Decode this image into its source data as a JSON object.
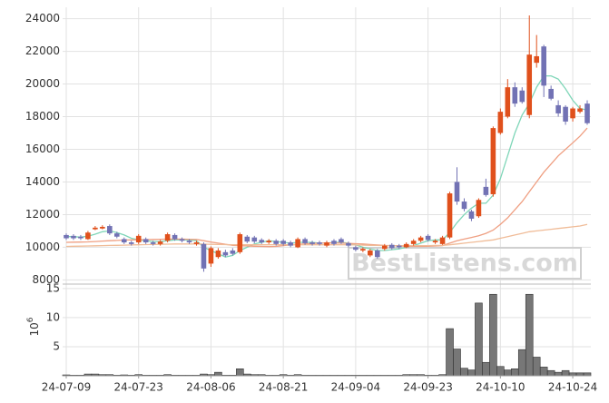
{
  "chart_data": [
    {
      "type": "candlestick",
      "up_color": "#e0501c",
      "down_color": "#7272b4",
      "ylim": [
        7800,
        24700
      ],
      "yticks": [
        8000,
        10000,
        12000,
        14000,
        16000,
        18000,
        20000,
        22000,
        24000
      ],
      "grid": true,
      "watermark": "BestListens.com",
      "open": [
        10750,
        10700,
        10650,
        10500,
        11100,
        11150,
        11300,
        10850,
        10500,
        10300,
        10300,
        10500,
        10300,
        10200,
        10400,
        10750,
        10500,
        10400,
        10200,
        10200,
        9000,
        9400,
        9700,
        9800,
        9700,
        10650,
        10600,
        10450,
        10300,
        10400,
        10400,
        10300,
        10000,
        10500,
        10300,
        10300,
        10100,
        10400,
        10500,
        10250,
        10000,
        9800,
        9500,
        9800,
        9900,
        10150,
        10100,
        10000,
        10200,
        10400,
        10700,
        10300,
        10200,
        10600,
        14000,
        12800,
        12200,
        11900,
        13700,
        13250,
        17000,
        18000,
        19800,
        19600,
        18100,
        21300,
        22300,
        19700,
        18700,
        18600,
        17900,
        18300,
        18800
      ],
      "high": [
        10850,
        10800,
        10750,
        11000,
        11300,
        11350,
        11400,
        10950,
        10600,
        10400,
        10800,
        10600,
        10400,
        10450,
        10900,
        10850,
        10600,
        10500,
        10400,
        10300,
        10050,
        9950,
        9850,
        9950,
        10900,
        10750,
        10700,
        10550,
        10500,
        10500,
        10500,
        10400,
        10600,
        10600,
        10400,
        10400,
        10400,
        10500,
        10600,
        10350,
        10100,
        10000,
        9900,
        9900,
        10200,
        10250,
        10200,
        10300,
        10500,
        10700,
        10800,
        10500,
        10700,
        13400,
        14900,
        13000,
        12300,
        13000,
        14200,
        17400,
        18500,
        20300,
        20100,
        19800,
        24200,
        23000,
        22400,
        19900,
        19000,
        18700,
        18600,
        18700,
        19000
      ],
      "low": [
        10450,
        10450,
        10450,
        10450,
        11050,
        11100,
        10750,
        10550,
        10200,
        10100,
        10200,
        10200,
        10100,
        10100,
        10300,
        10400,
        10300,
        10200,
        10100,
        8500,
        8800,
        9300,
        9400,
        9500,
        9600,
        10250,
        10250,
        10200,
        10200,
        10100,
        10100,
        10000,
        9950,
        10150,
        10100,
        10100,
        10000,
        10100,
        10200,
        10000,
        9750,
        9700,
        9400,
        9300,
        9800,
        9850,
        9900,
        9950,
        10100,
        10300,
        10350,
        10200,
        10150,
        10500,
        12600,
        12200,
        11600,
        11800,
        13100,
        13100,
        16900,
        17900,
        18600,
        18800,
        17900,
        21000,
        19200,
        19000,
        18000,
        17500,
        17700,
        18200,
        17500
      ],
      "close": [
        10550,
        10550,
        10550,
        10900,
        11200,
        11250,
        10850,
        10650,
        10300,
        10200,
        10700,
        10300,
        10200,
        10350,
        10800,
        10500,
        10400,
        10300,
        10300,
        8700,
        9950,
        9800,
        9500,
        9600,
        10800,
        10350,
        10350,
        10300,
        10400,
        10200,
        10200,
        10100,
        10500,
        10250,
        10200,
        10200,
        10300,
        10200,
        10300,
        10100,
        9850,
        9900,
        9800,
        9400,
        10100,
        9950,
        10000,
        10200,
        10400,
        10600,
        10450,
        10400,
        10600,
        13300,
        12800,
        12350,
        11750,
        12900,
        13200,
        17300,
        18300,
        19800,
        18800,
        18900,
        21800,
        21700,
        19900,
        19100,
        18200,
        17700,
        18500,
        18500,
        17600
      ],
      "moving_averages": [
        {
          "color": "#7fd6b8",
          "values": [
            10650,
            10650,
            10620,
            10680,
            10800,
            10950,
            11000,
            10900,
            10750,
            10550,
            10450,
            10400,
            10350,
            10350,
            10400,
            10450,
            10450,
            10450,
            10400,
            10000,
            9800,
            9600,
            9400,
            9500,
            9800,
            10000,
            10200,
            10300,
            10400,
            10350,
            10300,
            10250,
            10300,
            10300,
            10300,
            10250,
            10250,
            10300,
            10300,
            10250,
            10150,
            10000,
            9900,
            9800,
            9800,
            9850,
            9900,
            10000,
            10100,
            10250,
            10400,
            10450,
            10450,
            10900,
            11500,
            12000,
            12400,
            12700,
            12700,
            13200,
            14200,
            15600,
            17000,
            18100,
            18800,
            19800,
            20500,
            20500,
            20300,
            19700,
            19000,
            18500,
            18400
          ]
        },
        {
          "color": "#ef9f82",
          "values": [
            10300,
            10310,
            10320,
            10330,
            10350,
            10380,
            10400,
            10420,
            10440,
            10450,
            10460,
            10470,
            10480,
            10490,
            10500,
            10500,
            10500,
            10490,
            10480,
            10400,
            10320,
            10250,
            10180,
            10120,
            10100,
            10080,
            10060,
            10050,
            10040,
            10050,
            10100,
            10150,
            10180,
            10200,
            10230,
            10250,
            10260,
            10260,
            10250,
            10240,
            10220,
            10200,
            10170,
            10140,
            10110,
            10100,
            10080,
            10060,
            10050,
            10050,
            10060,
            10080,
            10100,
            10250,
            10400,
            10500,
            10600,
            10700,
            10850,
            11050,
            11400,
            11800,
            12300,
            12800,
            13400,
            14000,
            14600,
            15100,
            15600,
            16000,
            16400,
            16800,
            17300
          ]
        },
        {
          "color": "#f0bc98",
          "values": [
            10050,
            10060,
            10070,
            10080,
            10090,
            10100,
            10110,
            10120,
            10130,
            10140,
            10150,
            10160,
            10170,
            10180,
            10190,
            10200,
            10200,
            10200,
            10200,
            10190,
            10180,
            10170,
            10160,
            10150,
            10150,
            10150,
            10150,
            10150,
            10150,
            10150,
            10150,
            10150,
            10150,
            10150,
            10150,
            10150,
            10150,
            10150,
            10150,
            10150,
            10140,
            10130,
            10120,
            10110,
            10100,
            10100,
            10100,
            10100,
            10100,
            10100,
            10100,
            10110,
            10120,
            10150,
            10200,
            10250,
            10300,
            10350,
            10400,
            10450,
            10550,
            10650,
            10750,
            10850,
            10950,
            11000,
            11050,
            11100,
            11150,
            11200,
            11250,
            11300,
            11400
          ]
        }
      ]
    },
    {
      "type": "bar",
      "color": "#777777",
      "unit": {
        "base": "10",
        "exponent": "6"
      },
      "categories": [
        "24-07-09",
        null,
        null,
        null,
        null,
        null,
        null,
        null,
        null,
        null,
        "24-07-23",
        null,
        null,
        null,
        null,
        null,
        null,
        null,
        null,
        null,
        "24-08-06",
        null,
        null,
        null,
        null,
        null,
        null,
        null,
        null,
        null,
        "24-08-21",
        null,
        null,
        null,
        null,
        null,
        null,
        null,
        null,
        null,
        "24-09-04",
        null,
        null,
        null,
        null,
        null,
        null,
        null,
        null,
        null,
        "24-09-23",
        null,
        null,
        null,
        null,
        null,
        null,
        null,
        null,
        null,
        "24-10-10",
        null,
        null,
        null,
        null,
        null,
        null,
        null,
        null,
        null,
        "24-10-24",
        null,
        null
      ],
      "values": [
        0.15,
        0.1,
        0.1,
        0.3,
        0.3,
        0.2,
        0.2,
        0.1,
        0.15,
        0.1,
        0.2,
        0.1,
        0.1,
        0.1,
        0.2,
        0.1,
        0.1,
        0.1,
        0.1,
        0.3,
        0.2,
        0.6,
        0.1,
        0.1,
        1.2,
        0.3,
        0.2,
        0.2,
        0.1,
        0.1,
        0.2,
        0.1,
        0.2,
        0.1,
        0.1,
        0.1,
        0.1,
        0.1,
        0.1,
        0.1,
        0.1,
        0.1,
        0.1,
        0.1,
        0.1,
        0.1,
        0.1,
        0.2,
        0.2,
        0.2,
        0.1,
        0.1,
        0.2,
        8.1,
        4.6,
        1.3,
        1.0,
        12.5,
        2.3,
        14.0,
        1.6,
        1.0,
        1.2,
        4.5,
        14.0,
        3.2,
        1.5,
        0.9,
        0.6,
        0.9,
        0.5,
        0.5,
        0.5
      ],
      "ylim": [
        0,
        15.6
      ],
      "yticks": [
        5,
        10,
        15
      ],
      "grid": true
    }
  ]
}
